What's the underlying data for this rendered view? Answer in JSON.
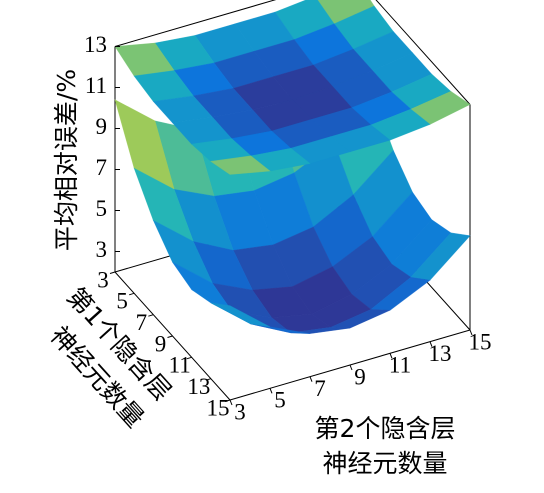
{
  "chart_data": {
    "type": "surface",
    "zlabel": "平均相对误差/%",
    "xlabel": [
      "第1个隐含层",
      "神经元数量"
    ],
    "ylabel": [
      "第2个隐含层",
      "神经元数量"
    ],
    "x": [
      3,
      5,
      7,
      9,
      11,
      13,
      15
    ],
    "y": [
      3,
      5,
      7,
      9,
      11,
      13,
      15
    ],
    "xlim": [
      3,
      15
    ],
    "ylim": [
      3,
      15
    ],
    "zlim": [
      2,
      13
    ],
    "xticks": [
      3,
      5,
      7,
      9,
      11,
      13,
      15
    ],
    "yticks": [
      3,
      5,
      7,
      9,
      11,
      13,
      15
    ],
    "zticks": [
      3,
      5,
      7,
      9,
      11,
      13
    ],
    "colormap": "parula",
    "series": [
      {
        "z": [
          [
            10.4,
            8.8,
            7.8,
            7.5,
            7.8,
            8.8,
            10.4
          ],
          [
            8.1,
            6.5,
            5.6,
            5.3,
            5.6,
            6.5,
            8.1
          ],
          [
            6.6,
            5.0,
            4.0,
            3.7,
            4.0,
            5.0,
            6.6
          ],
          [
            5.6,
            4.0,
            3.1,
            2.7,
            3.1,
            4.0,
            5.6
          ],
          [
            5.3,
            3.7,
            2.8,
            2.4,
            2.8,
            3.7,
            5.3
          ],
          [
            5.7,
            4.1,
            3.1,
            2.8,
            3.1,
            4.1,
            5.7
          ],
          [
            6.6,
            5.0,
            4.1,
            3.8,
            4.1,
            5.0,
            6.6
          ]
        ]
      },
      {
        "z": [
          [
            13.0,
            12.6,
            12.4,
            12.4,
            12.4,
            12.6,
            13.0
          ],
          [
            12.6,
            12.3,
            12.1,
            12.1,
            12.1,
            12.3,
            12.6
          ],
          [
            12.4,
            12.1,
            11.9,
            11.9,
            11.9,
            12.1,
            12.4
          ],
          [
            12.4,
            12.1,
            11.9,
            11.8,
            11.9,
            12.1,
            12.4
          ],
          [
            12.4,
            12.1,
            11.9,
            11.9,
            11.9,
            12.1,
            12.4
          ],
          [
            12.6,
            12.3,
            12.1,
            12.1,
            12.1,
            12.3,
            12.6
          ],
          [
            13.0,
            12.6,
            12.4,
            12.4,
            12.4,
            12.6,
            13.0
          ]
        ]
      }
    ]
  }
}
